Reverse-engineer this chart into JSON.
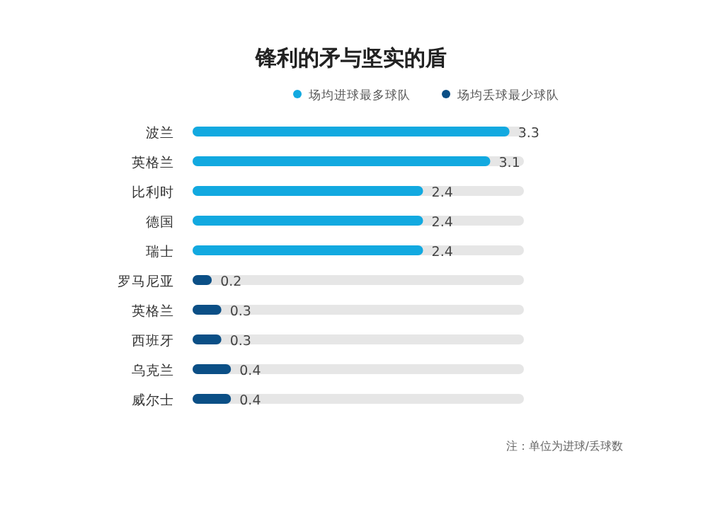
{
  "chart_data": {
    "type": "bar",
    "orientation": "horizontal",
    "title": "锋利的矛与坚实的盾",
    "categories": [
      "波兰",
      "英格兰",
      "比利时",
      "德国",
      "瑞士",
      "罗马尼亚",
      "英格兰",
      "西班牙",
      "乌克兰",
      "威尔士"
    ],
    "series": [
      {
        "name": "场均进球最多球队",
        "color": "#12a9e0",
        "values": [
          3.3,
          3.1,
          2.4,
          2.4,
          2.4,
          null,
          null,
          null,
          null,
          null
        ]
      },
      {
        "name": "场均丢球最少球队",
        "color": "#0b4f86",
        "values": [
          null,
          null,
          null,
          null,
          null,
          0.2,
          0.3,
          0.3,
          0.4,
          0.4
        ]
      }
    ],
    "xlim": [
      0,
      3.45
    ],
    "tick_labels": "y",
    "data_labels": true,
    "legend": "top right",
    "grid": false,
    "annotations": [
      "注：单位为进球/丢球数"
    ]
  }
}
